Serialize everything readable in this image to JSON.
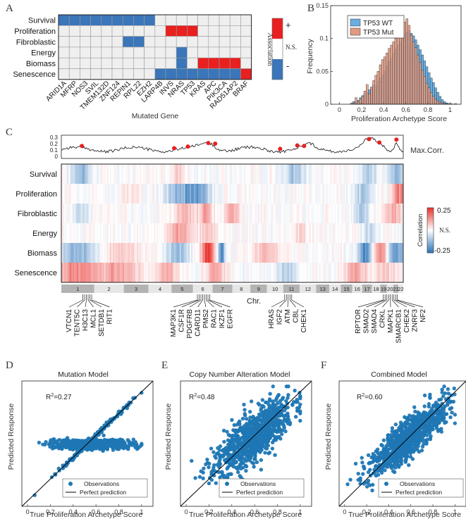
{
  "colors": {
    "pos": "#e8201f",
    "neg": "#3a76b9",
    "ns": "#efefef",
    "wt": "#6aaee0",
    "mut": "#e19a80",
    "scatter": "#1f77b4",
    "peak": "#e8201f"
  },
  "panel_letters": [
    "A",
    "B",
    "C",
    "D",
    "E",
    "F"
  ],
  "chart_data": [
    {
      "id": "A",
      "type": "heatmap",
      "xlabel": "Mutated Gene",
      "rows": [
        "Survival",
        "Proliferation",
        "Fibroblastic",
        "Energy",
        "Biomass",
        "Senescence"
      ],
      "columns": [
        "ARID1A",
        "MFRP",
        "NOS3",
        "SVIL",
        "TMEM132D",
        "ZNF124",
        "REPIN1",
        "RPL22",
        "EZH2",
        "LARP4B",
        "INVS",
        "NRAS",
        "TP53",
        "KRAS",
        "APC",
        "PIK3CA",
        "RAD51AP2",
        "BRAF"
      ],
      "matrix": [
        [
          -1,
          -1,
          -1,
          -1,
          -1,
          -1,
          -1,
          -1,
          -1,
          0,
          0,
          0,
          0,
          0,
          0,
          0,
          0,
          0
        ],
        [
          0,
          0,
          0,
          0,
          0,
          0,
          0,
          0,
          0,
          0,
          1,
          1,
          1,
          0,
          0,
          0,
          0,
          0
        ],
        [
          0,
          0,
          0,
          0,
          0,
          0,
          -1,
          -1,
          0,
          0,
          0,
          0,
          0,
          0,
          0,
          0,
          0,
          0
        ],
        [
          0,
          0,
          0,
          0,
          0,
          0,
          0,
          0,
          0,
          0,
          0,
          -1,
          0,
          0,
          0,
          0,
          0,
          0
        ],
        [
          0,
          0,
          0,
          0,
          0,
          0,
          0,
          0,
          0,
          0,
          0,
          -1,
          0,
          1,
          1,
          1,
          1,
          0
        ],
        [
          0,
          0,
          0,
          0,
          0,
          0,
          0,
          0,
          0,
          -1,
          -1,
          -1,
          -1,
          -1,
          -1,
          -1,
          -1,
          1
        ]
      ],
      "legend": {
        "title": "Association",
        "plus": "+",
        "ns": "N.S.",
        "minus": "-"
      }
    },
    {
      "id": "B",
      "type": "bar",
      "xlabel": "Proliferation Archetype Score",
      "ylabel": "Frequency",
      "xlim": [
        -0.08,
        1.1
      ],
      "ylim": [
        0,
        0.15
      ],
      "xticks": [
        0,
        0.2,
        0.4,
        0.6,
        0.8,
        1
      ],
      "yticks": [
        0,
        0.05,
        0.1,
        0.15
      ],
      "legend": [
        "TP53 WT",
        "TP53 Mut"
      ],
      "bin_start": 0.1,
      "bin_width": 0.02,
      "series": [
        {
          "name": "TP53 WT",
          "values": [
            0.002,
            0.004,
            0.003,
            0.006,
            0.01,
            0.013,
            0.016,
            0.018,
            0.022,
            0.026,
            0.03,
            0.028,
            0.035,
            0.04,
            0.045,
            0.05,
            0.058,
            0.065,
            0.07,
            0.078,
            0.084,
            0.09,
            0.095,
            0.1,
            0.106,
            0.11,
            0.112,
            0.108,
            0.104,
            0.098,
            0.09,
            0.083,
            0.075,
            0.066,
            0.057,
            0.048,
            0.04,
            0.033,
            0.025,
            0.018,
            0.012,
            0.007,
            0.004,
            0.002,
            0.001,
            0.001,
            0,
            0.001
          ]
        },
        {
          "name": "TP53 Mut",
          "values": [
            0,
            0.002,
            0.01,
            0.004,
            0.008,
            0.012,
            0.02,
            0.03,
            0.016,
            0.026,
            0.036,
            0.044,
            0.05,
            0.06,
            0.068,
            0.072,
            0.078,
            0.085,
            0.09,
            0.095,
            0.1,
            0.108,
            0.115,
            0.12,
            0.125,
            0.13,
            0.12,
            0.105,
            0.095,
            0.086,
            0.075,
            0.064,
            0.052,
            0.042,
            0.032,
            0.025,
            0.018,
            0.012,
            0.008,
            0.005,
            0.003,
            0.002,
            0.001,
            0.001,
            0,
            0,
            0,
            0
          ]
        }
      ]
    },
    {
      "id": "C",
      "type": "heatmap",
      "rows": [
        "Survival",
        "Proliferation",
        "Fibroblastic",
        "Energy",
        "Biomass",
        "Senescence"
      ],
      "colorbar": {
        "title": "Correlation",
        "max": "0.25",
        "mid": "N.S.",
        "min": "-0.25"
      },
      "top_trace": {
        "label": "Max.Corr.",
        "yticks": [
          "0.3",
          "0.2",
          "0.1",
          "0"
        ]
      },
      "chromosome_label": "Chr.",
      "chromosomes": [
        "1",
        "2",
        "3",
        "4",
        "5",
        "6",
        "7",
        "8",
        "9",
        "10",
        "11",
        "12",
        "13",
        "14",
        "15",
        "16",
        "17",
        "18",
        "19",
        "20",
        "21",
        "22"
      ],
      "gene_groups": [
        [
          "VTCN1",
          "TENT5C",
          "H3C13",
          "MCL1",
          "SETDB1",
          "RIT1"
        ],
        [
          "MAP3K1",
          "CSF1R",
          "PDGFRB",
          "CARD11",
          "PMS2",
          "RAC1",
          "IKZF1",
          "EGFR"
        ],
        [
          "HRAS",
          "IGF2",
          "ATM",
          "CBL",
          "CHEK1"
        ],
        [
          "RPTOR",
          "SMAD2",
          "SMAD4",
          "CRKL",
          "MAPK1",
          "SMARCB1",
          "CHEK2",
          "ZNRF3",
          "NF2"
        ]
      ]
    },
    {
      "id": "D",
      "type": "scatter",
      "title": "Mutation Model",
      "r2": "0.27",
      "xlabel": "True Proliferation Archetype Score",
      "ylabel": "Predicted Response",
      "xlim": [
        -0.05,
        1.1
      ],
      "ylim": [
        -0.05,
        1.1
      ],
      "xticks": [
        0,
        0.2,
        0.4,
        0.6,
        0.8,
        1
      ],
      "legend": [
        "Observations",
        "Perfect prediction"
      ]
    },
    {
      "id": "E",
      "type": "scatter",
      "title": "Copy Number Alteration Model",
      "r2": "0.48",
      "xlabel": "True Proliferation Archetype Score",
      "ylabel": "Predicted Response",
      "xlim": [
        -0.05,
        1.1
      ],
      "ylim": [
        -0.05,
        1.1
      ],
      "xticks": [
        0,
        0.2,
        0.4,
        0.6,
        0.8,
        1
      ],
      "legend": [
        "Observations",
        "Perfect prediction"
      ]
    },
    {
      "id": "F",
      "type": "scatter",
      "title": "Combined Model",
      "r2": "0.60",
      "xlabel": "True Proliferation Archetype Score",
      "ylabel": "Predicted Response",
      "xlim": [
        -0.05,
        1.1
      ],
      "ylim": [
        -0.05,
        1.1
      ],
      "xticks": [
        0,
        0.2,
        0.4,
        0.6,
        0.8,
        1
      ],
      "legend": [
        "Observations",
        "Perfect prediction"
      ]
    }
  ]
}
